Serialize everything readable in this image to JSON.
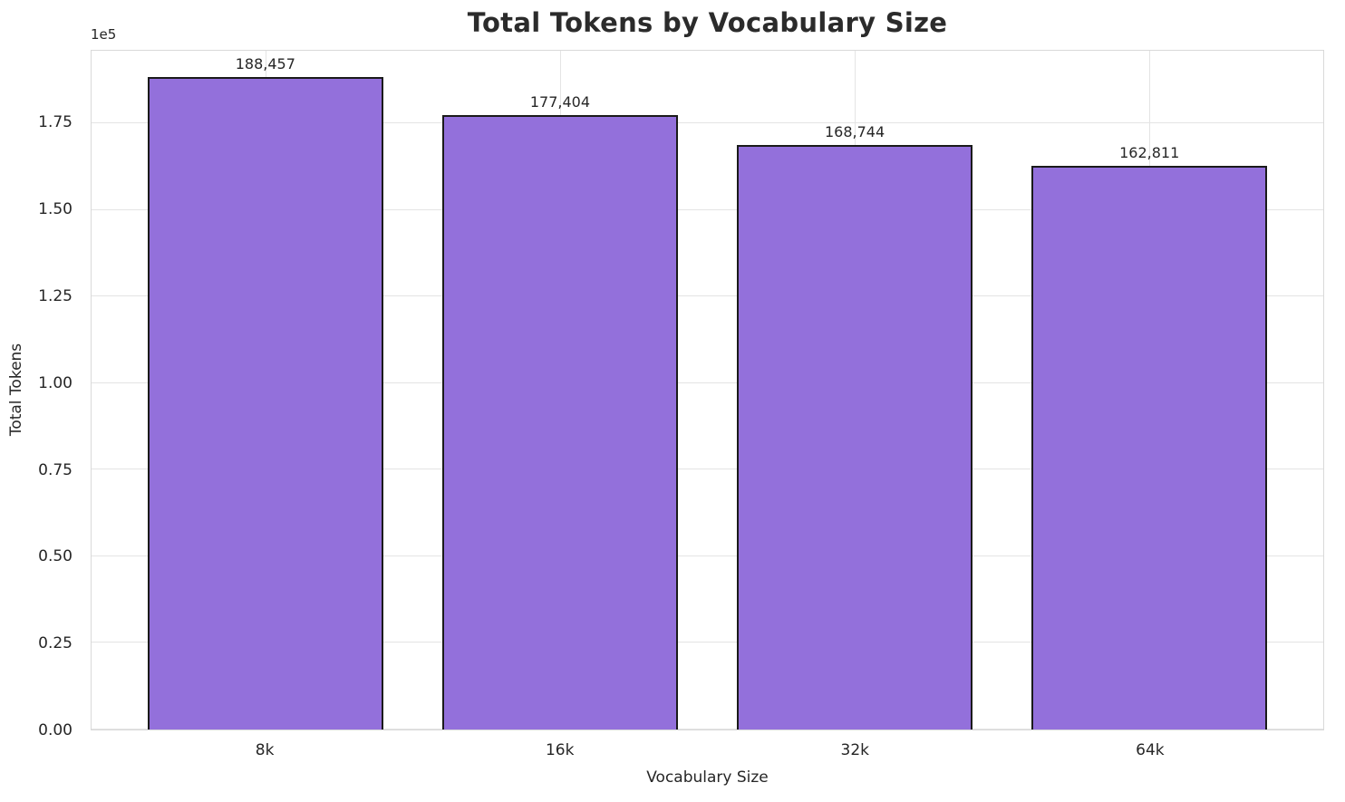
{
  "chart_data": {
    "type": "bar",
    "title": "Total Tokens by Vocabulary Size",
    "xlabel": "Vocabulary Size",
    "ylabel": "Total Tokens",
    "y_offset_label": "1e5",
    "categories": [
      "8k",
      "16k",
      "32k",
      "64k"
    ],
    "values": [
      188457,
      177404,
      168744,
      162811
    ],
    "value_labels": [
      "188,457",
      "177,404",
      "168,744",
      "162,811"
    ],
    "ylim": [
      0,
      196000
    ],
    "y_ticks": [
      {
        "value": 0,
        "label": "0.00"
      },
      {
        "value": 25000,
        "label": "0.25"
      },
      {
        "value": 50000,
        "label": "0.50"
      },
      {
        "value": 75000,
        "label": "0.75"
      },
      {
        "value": 100000,
        "label": "1.00"
      },
      {
        "value": 125000,
        "label": "1.25"
      },
      {
        "value": 150000,
        "label": "1.50"
      },
      {
        "value": 175000,
        "label": "1.75"
      }
    ],
    "grid": true,
    "legend_position": "none",
    "colors": {
      "bar_fill": "#9370DB",
      "bar_edge": "#1a1a1a",
      "grid_line": "#e4e4e4",
      "title_text": "#2b2b2b",
      "tick_text": "#262626"
    }
  }
}
